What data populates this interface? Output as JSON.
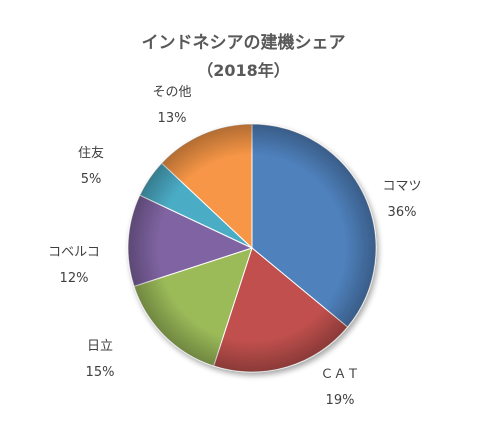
{
  "chart_data": {
    "type": "pie",
    "title": "インドネシアの建機シェア",
    "subtitle": "（2018年）",
    "slices": [
      {
        "label": "コマツ",
        "value": 36,
        "display": "36%",
        "color": "#4f81bd"
      },
      {
        "label": "ＣＡＴ",
        "value": 19,
        "display": "19%",
        "color": "#c0504d"
      },
      {
        "label": "日立",
        "value": 15,
        "display": "15%",
        "color": "#9bbb59"
      },
      {
        "label": "コベルコ",
        "value": 12,
        "display": "12%",
        "color": "#8064a2"
      },
      {
        "label": "住友",
        "value": 5,
        "display": "5%",
        "color": "#4bacc6"
      },
      {
        "label": "その他",
        "value": 13,
        "display": "13%",
        "color": "#f79646"
      }
    ],
    "start": "12 o'clock",
    "direction": "clockwise",
    "legend": "none",
    "data_labels": "outside"
  }
}
